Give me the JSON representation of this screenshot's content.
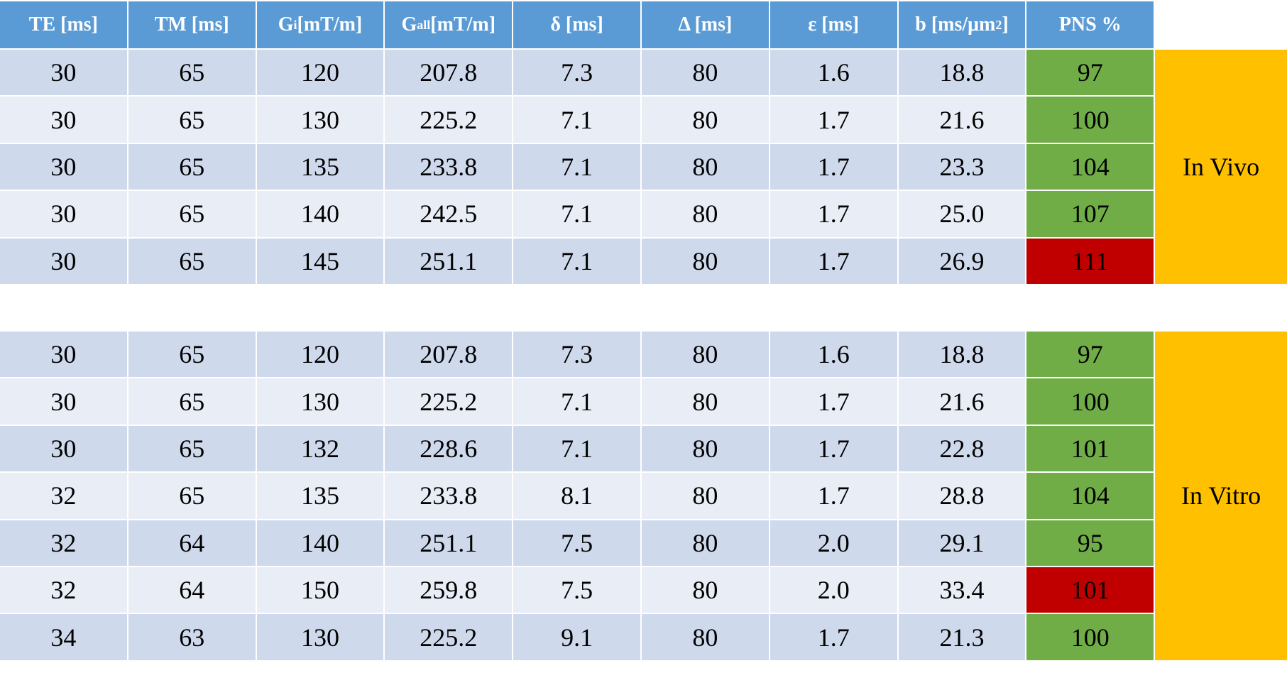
{
  "header": [
    {
      "base": "TE [ms]"
    },
    {
      "base": "TM [ms]"
    },
    {
      "base": "G",
      "sub": "i",
      "suffix": " [mT/m]"
    },
    {
      "base": "G",
      "sub": "all",
      "suffix": " [mT/m]"
    },
    {
      "base": "δ [ms]"
    },
    {
      "base": "Δ [ms]"
    },
    {
      "base": "ε [ms]"
    },
    {
      "base": "b [ms/μm",
      "sup": "2",
      "suffix": "]"
    },
    {
      "base": "PNS %"
    }
  ],
  "tables": [
    {
      "label": "In Vivo",
      "rows": [
        [
          "30",
          "65",
          "120",
          "207.8",
          "7.3",
          "80",
          "1.6",
          "18.8",
          "97"
        ],
        [
          "30",
          "65",
          "130",
          "225.2",
          "7.1",
          "80",
          "1.7",
          "21.6",
          "100"
        ],
        [
          "30",
          "65",
          "135",
          "233.8",
          "7.1",
          "80",
          "1.7",
          "23.3",
          "104"
        ],
        [
          "30",
          "65",
          "140",
          "242.5",
          "7.1",
          "80",
          "1.7",
          "25.0",
          "107"
        ],
        [
          "30",
          "65",
          "145",
          "251.1",
          "7.1",
          "80",
          "1.7",
          "26.9",
          "111"
        ]
      ],
      "pns_colors": [
        "#70ad47",
        "#70ad47",
        "#70ad47",
        "#70ad47",
        "#c00000"
      ]
    },
    {
      "label": "In Vitro",
      "rows": [
        [
          "30",
          "65",
          "120",
          "207.8",
          "7.3",
          "80",
          "1.6",
          "18.8",
          "97"
        ],
        [
          "30",
          "65",
          "130",
          "225.2",
          "7.1",
          "80",
          "1.7",
          "21.6",
          "100"
        ],
        [
          "30",
          "65",
          "132",
          "228.6",
          "7.1",
          "80",
          "1.7",
          "22.8",
          "101"
        ],
        [
          "32",
          "65",
          "135",
          "233.8",
          "8.1",
          "80",
          "1.7",
          "28.8",
          "104"
        ],
        [
          "32",
          "64",
          "140",
          "251.1",
          "7.5",
          "80",
          "2.0",
          "29.1",
          "95"
        ],
        [
          "32",
          "64",
          "150",
          "259.8",
          "7.5",
          "80",
          "2.0",
          "33.4",
          "101"
        ],
        [
          "34",
          "63",
          "130",
          "225.2",
          "9.1",
          "80",
          "1.7",
          "21.3",
          "100"
        ]
      ],
      "pns_colors": [
        "#70ad47",
        "#70ad47",
        "#70ad47",
        "#70ad47",
        "#70ad47",
        "#c00000",
        "#70ad47"
      ]
    }
  ]
}
